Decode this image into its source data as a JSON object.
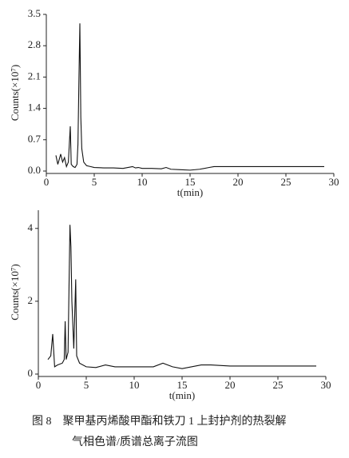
{
  "chart_data": [
    {
      "type": "line",
      "xlabel": "t(min)",
      "ylabel": "Counts(×10⁷)",
      "x": [
        1.0,
        1.2,
        1.4,
        1.5,
        1.7,
        1.9,
        2.1,
        2.3,
        2.4,
        2.5,
        2.6,
        2.8,
        3.0,
        3.2,
        3.3,
        3.4,
        3.5,
        3.6,
        3.7,
        3.9,
        4.2,
        4.6,
        5,
        6,
        7,
        8,
        9,
        9.3,
        9.6,
        10,
        11,
        12,
        12.5,
        13,
        14,
        15,
        16,
        17,
        17.5,
        18,
        20,
        25,
        29
      ],
      "values": [
        0.35,
        0.15,
        0.3,
        0.38,
        0.2,
        0.3,
        0.1,
        0.2,
        0.6,
        1.0,
        0.15,
        0.1,
        0.08,
        0.15,
        0.6,
        2.0,
        3.3,
        1.2,
        0.5,
        0.2,
        0.12,
        0.1,
        0.08,
        0.07,
        0.07,
        0.06,
        0.1,
        0.07,
        0.08,
        0.06,
        0.06,
        0.05,
        0.08,
        0.04,
        0.03,
        0.02,
        0.04,
        0.08,
        0.1,
        0.1,
        0.1,
        0.1,
        0.1
      ],
      "color": "#111111",
      "xlim": [
        0,
        30
      ],
      "xticks": [
        0,
        5,
        10,
        15,
        20,
        25,
        30
      ],
      "ylim": [
        0,
        3.5
      ],
      "yticks": [
        {
          "value": 0,
          "label": "0.0"
        },
        0.7,
        1.4,
        2.1,
        2.8,
        3.5
      ]
    },
    {
      "type": "line",
      "xlabel": "t(min)",
      "ylabel": "Counts(×10⁷)",
      "x": [
        1.0,
        1.3,
        1.5,
        1.7,
        2.0,
        2.5,
        2.7,
        2.8,
        2.9,
        3.1,
        3.3,
        3.4,
        3.5,
        3.7,
        3.9,
        4.0,
        4.3,
        5,
        6,
        7,
        8,
        10,
        12,
        13,
        14,
        15,
        17,
        18,
        20,
        25,
        29
      ],
      "values": [
        0.4,
        0.5,
        1.1,
        0.2,
        0.25,
        0.3,
        0.4,
        1.45,
        0.4,
        0.6,
        4.1,
        3.5,
        2.0,
        0.7,
        2.6,
        0.5,
        0.3,
        0.2,
        0.18,
        0.25,
        0.2,
        0.2,
        0.2,
        0.3,
        0.2,
        0.15,
        0.25,
        0.25,
        0.22,
        0.22,
        0.22
      ],
      "color": "#111111",
      "xlim": [
        0,
        30
      ],
      "xticks": [
        0,
        5,
        10,
        15,
        20,
        25,
        30
      ],
      "ylim": [
        0,
        4.5
      ],
      "yticks": [
        0,
        2,
        4
      ]
    }
  ],
  "caption": {
    "lines": [
      "图 8　聚甲基丙烯酸甲酯和铁刀 1 上封护剂的热裂解",
      "气相色谱/质谱总离子流图"
    ]
  }
}
